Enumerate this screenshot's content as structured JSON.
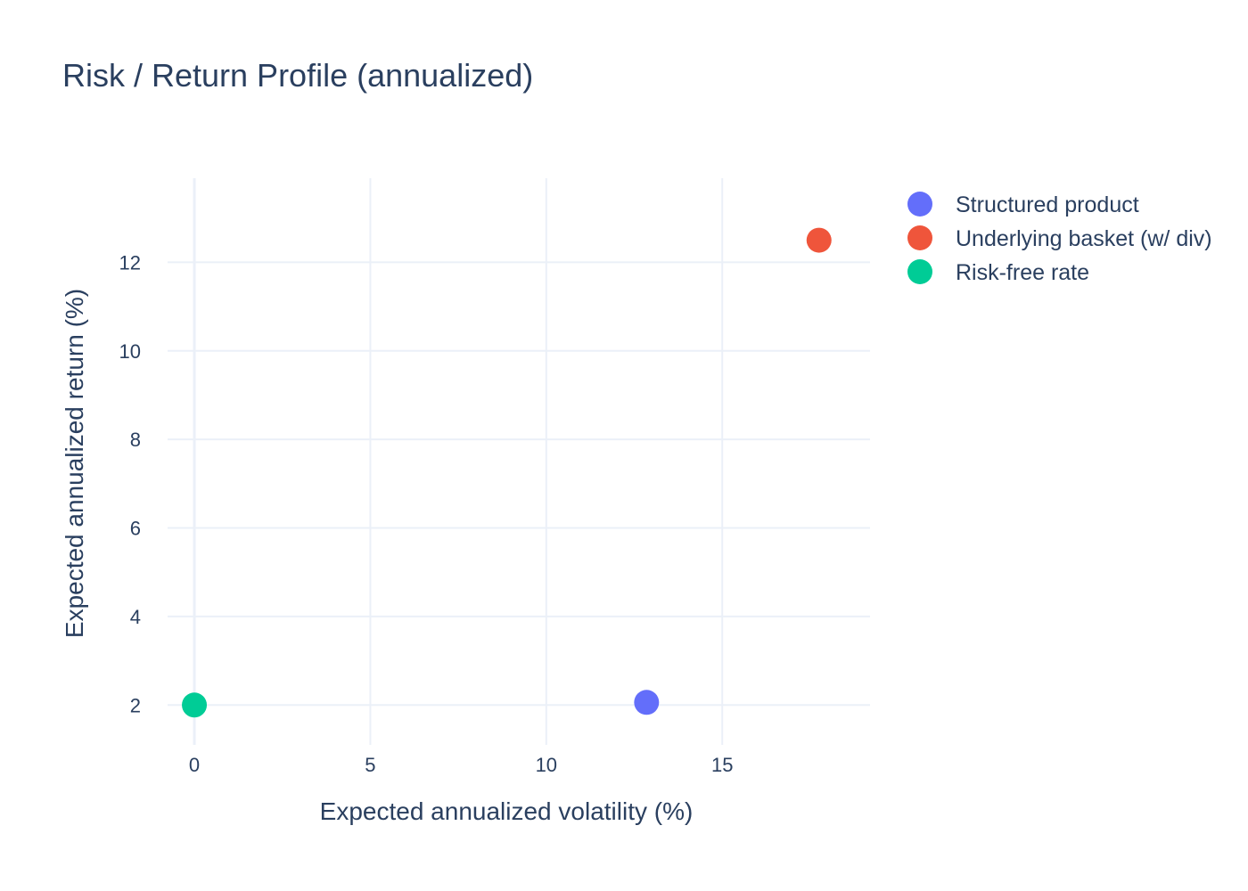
{
  "chart_data": {
    "type": "scatter",
    "title": "Risk / Return Profile (annualized)",
    "xlabel": "Expected annualized volatility (%)",
    "ylabel": "Expected annualized return (%)",
    "xlim": [
      -3.75,
      19.2
    ],
    "ylim": [
      1.1,
      13.9
    ],
    "xticks": [
      0,
      5,
      10,
      15
    ],
    "yticks": [
      2,
      4,
      6,
      8,
      10,
      12
    ],
    "grid": true,
    "legend_position": "top-right outside",
    "series": [
      {
        "name": "Structured product",
        "color": "#636efa",
        "points": [
          {
            "x": 12.85,
            "y": 2.06
          }
        ]
      },
      {
        "name": "Underlying basket (w/ div)",
        "color": "#ef553b",
        "points": [
          {
            "x": 17.75,
            "y": 12.5
          }
        ]
      },
      {
        "name": "Risk-free rate",
        "color": "#00cc96",
        "points": [
          {
            "x": 0,
            "y": 2.0
          }
        ]
      }
    ]
  }
}
